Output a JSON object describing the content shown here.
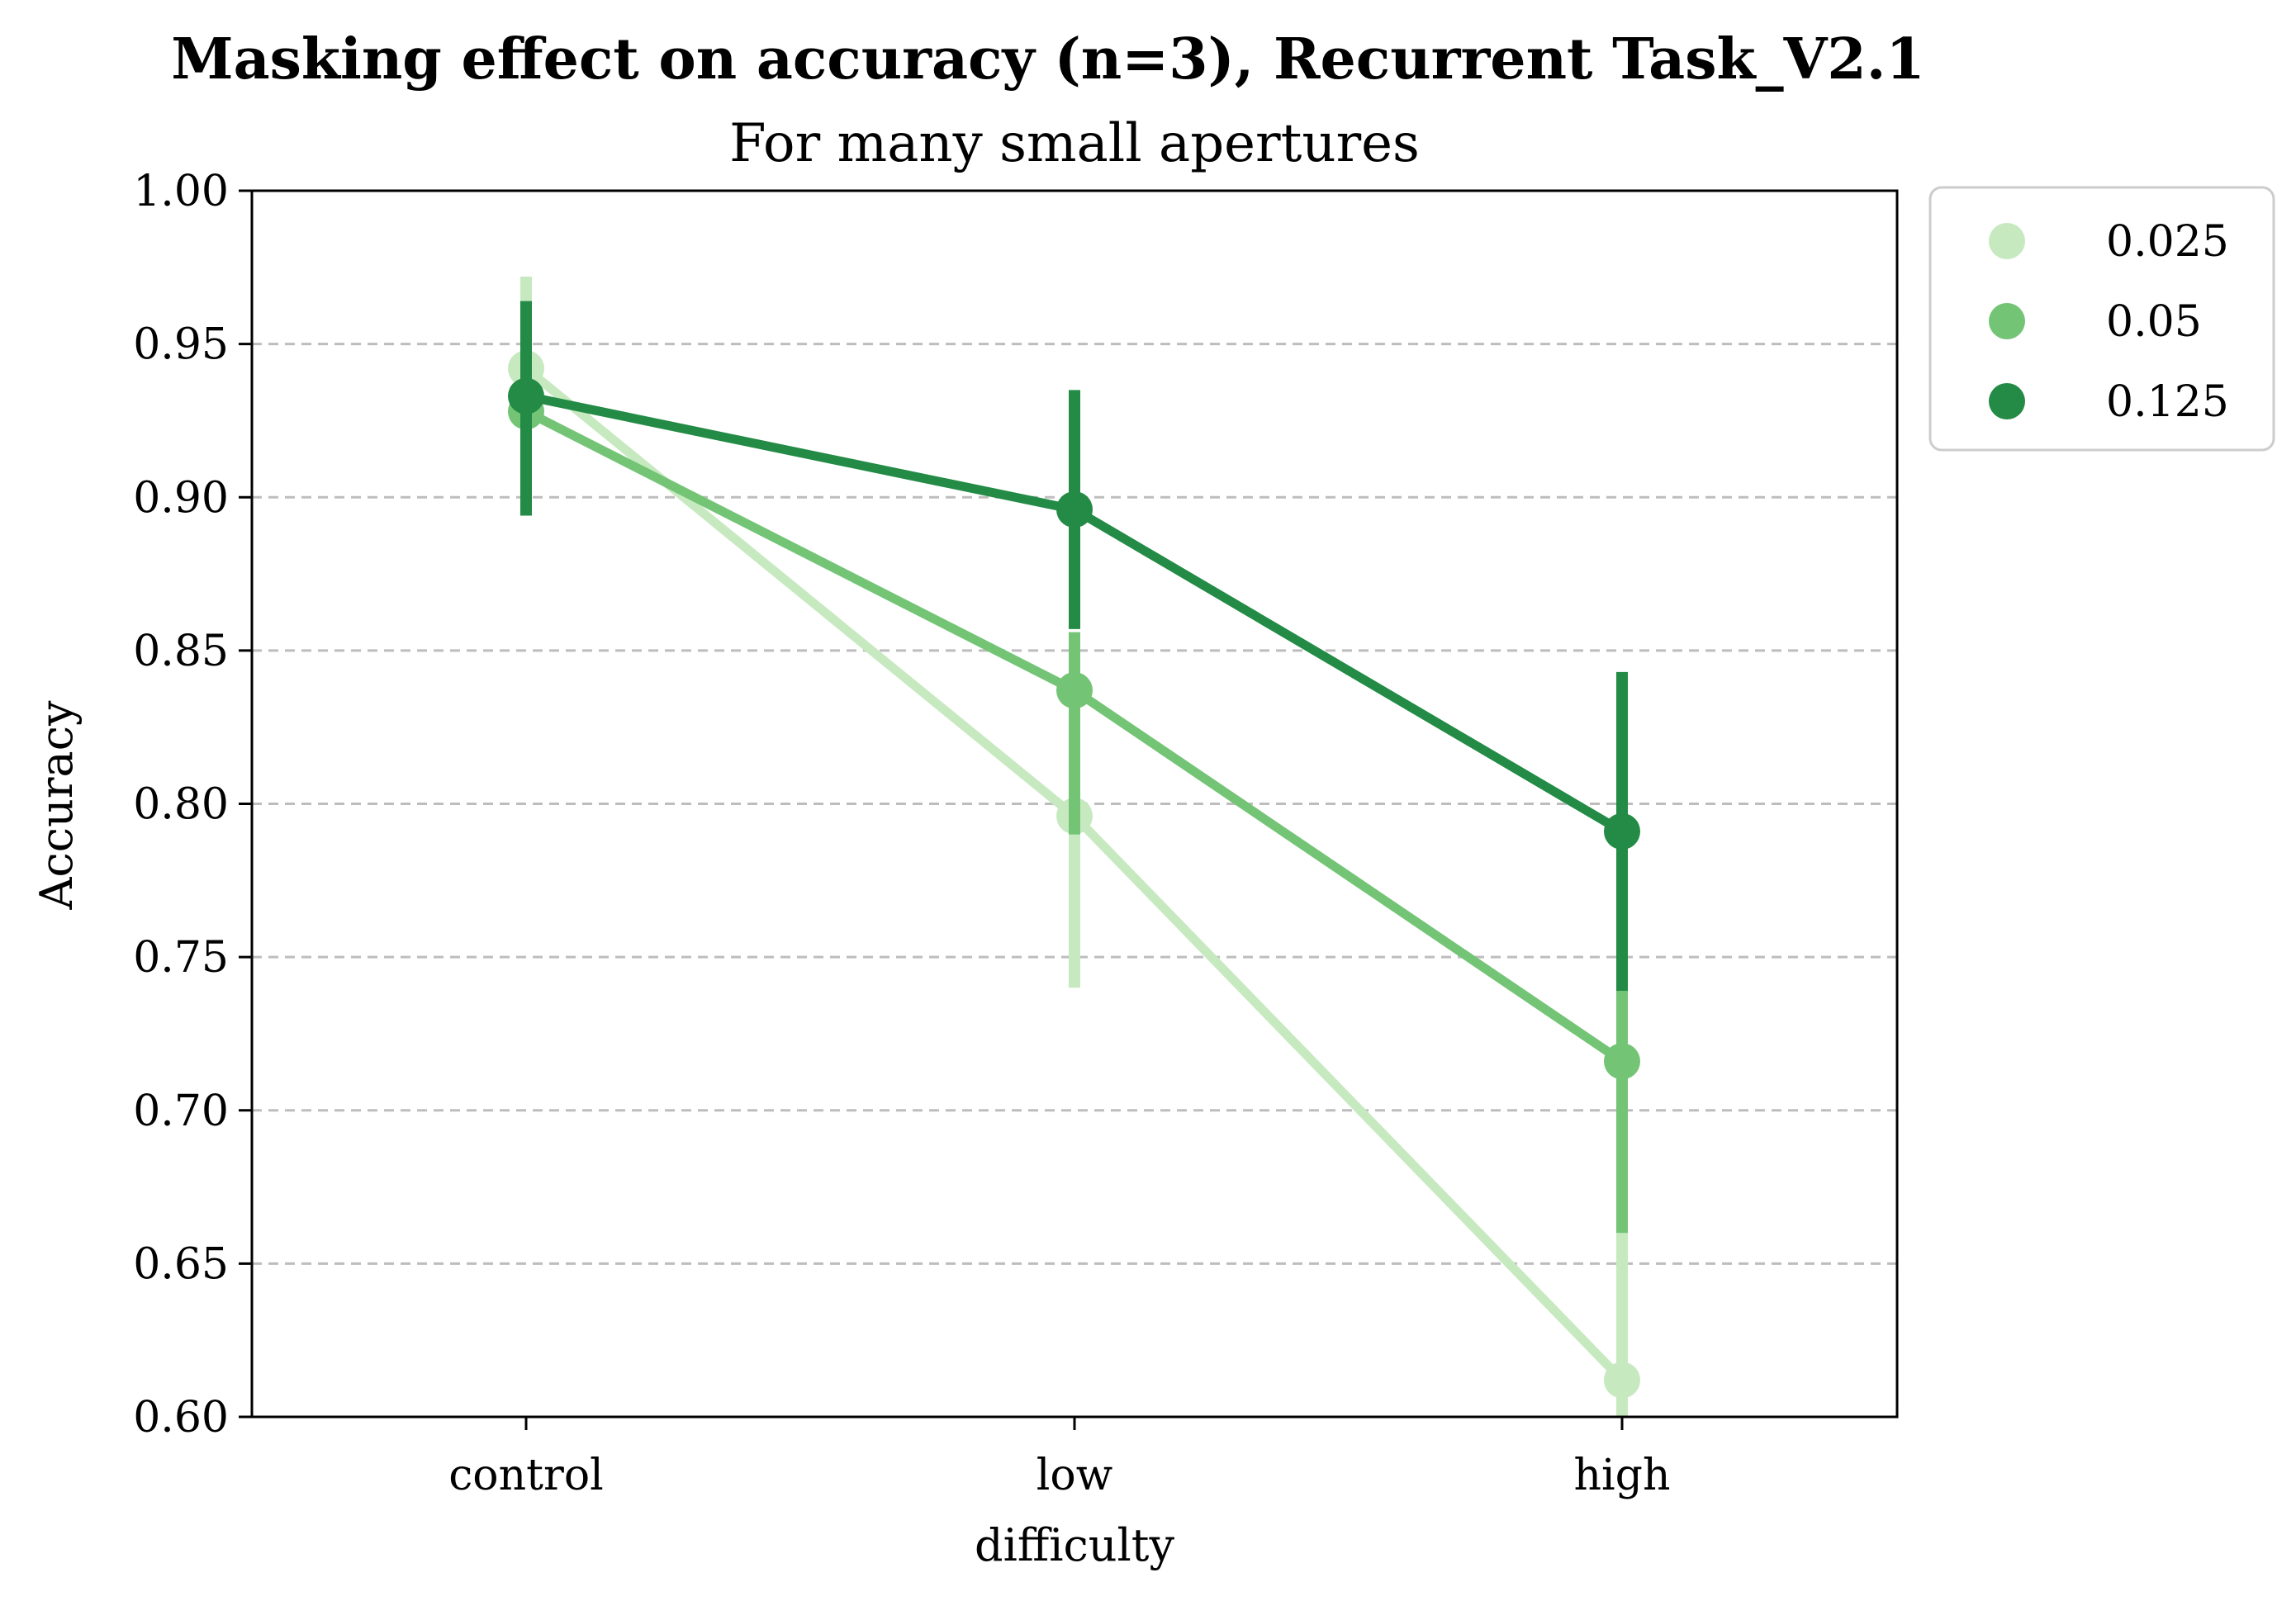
{
  "chart_data": {
    "type": "line",
    "title": "Masking effect on accuracy (n=3), Recurrent Task_V2.1",
    "subtitle": "For many small apertures",
    "xlabel": "difficulty",
    "ylabel": "Accuracy",
    "categories": [
      "control",
      "low",
      "high"
    ],
    "ylim": [
      0.6,
      1.0
    ],
    "yticks": [
      0.6,
      0.65,
      0.7,
      0.75,
      0.8,
      0.85,
      0.9,
      0.95,
      1.0
    ],
    "ytick_labels": [
      "0.60",
      "0.65",
      "0.70",
      "0.75",
      "0.80",
      "0.85",
      "0.90",
      "0.95",
      "1.00"
    ],
    "grid": "horizontal dashed",
    "legend_position": "outside top-right",
    "series": [
      {
        "name": "0.025",
        "color": "#c7e9c0",
        "values": [
          0.942,
          0.796,
          0.612
        ],
        "error_low": [
          0.912,
          0.74,
          0.585
        ],
        "error_high": [
          0.972,
          0.856,
          0.66
        ]
      },
      {
        "name": "0.05",
        "color": "#74c476",
        "values": [
          0.928,
          0.837,
          0.716
        ],
        "error_low": [
          0.9,
          0.79,
          0.66
        ],
        "error_high": [
          0.956,
          0.856,
          0.74
        ]
      },
      {
        "name": "0.125",
        "color": "#238b45",
        "values": [
          0.933,
          0.896,
          0.791
        ],
        "error_low": [
          0.894,
          0.857,
          0.739
        ],
        "error_high": [
          0.964,
          0.935,
          0.843
        ]
      }
    ]
  }
}
